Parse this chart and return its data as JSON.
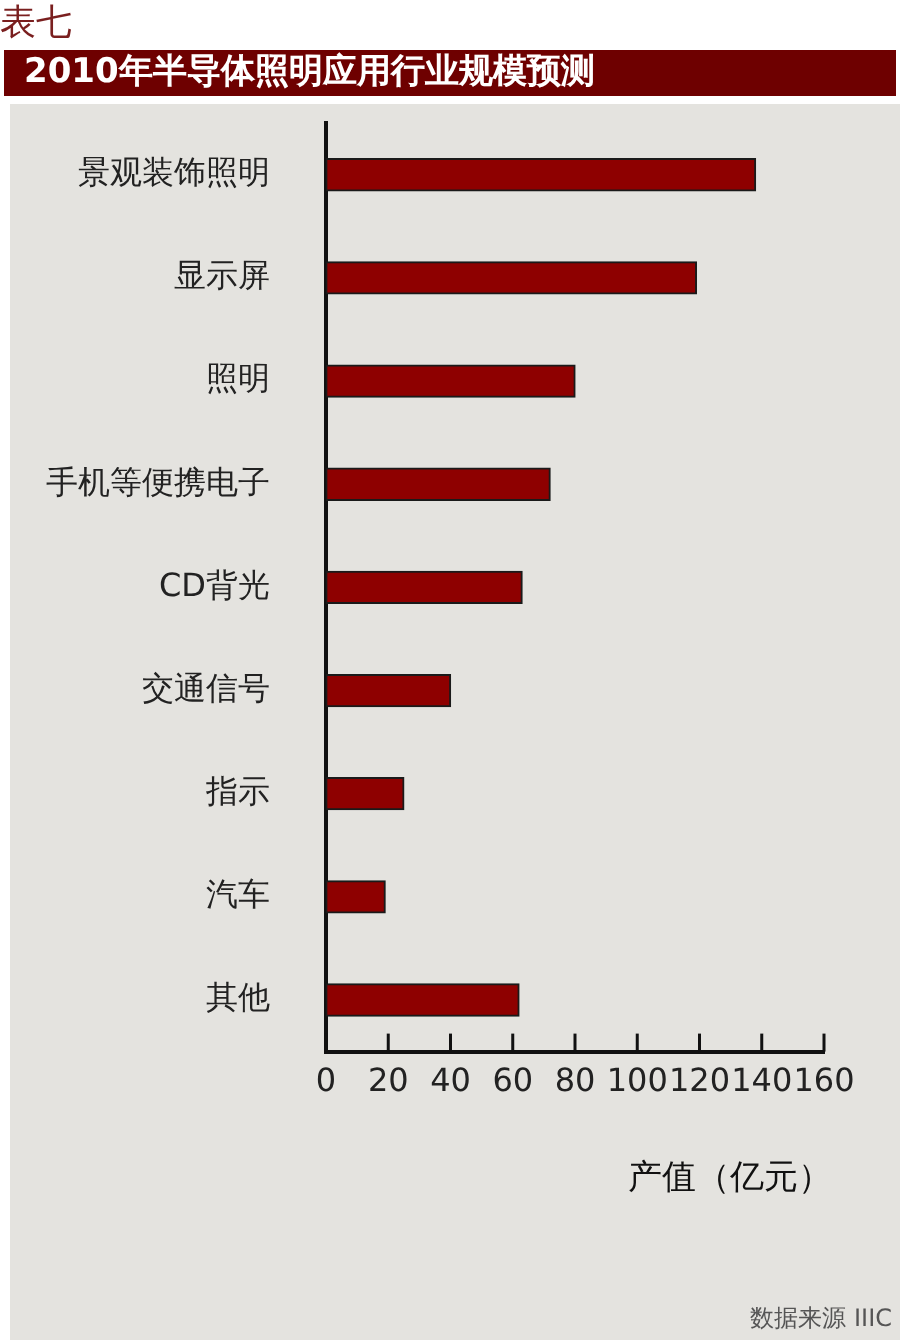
{
  "chart_data": {
    "type": "bar",
    "orientation": "horizontal",
    "title": "2010年半导体照明应用行业规模预测",
    "xlabel": "产值（亿元）",
    "categories": [
      "景观装饰照明",
      "显示屏",
      "照明",
      "手机等便携电子",
      "CD背光",
      "交通信号",
      "指示",
      "汽车",
      "其他"
    ],
    "values": [
      138,
      119,
      80,
      72,
      63,
      40,
      25,
      19,
      62
    ],
    "color": "#8e0000",
    "xlim": [
      0,
      160
    ],
    "xticks": [
      0,
      20,
      40,
      60,
      80,
      100,
      120,
      140,
      160
    ],
    "grid": false,
    "legend": false,
    "annotations": [
      "表七",
      "数据来源 IIIC"
    ]
  }
}
